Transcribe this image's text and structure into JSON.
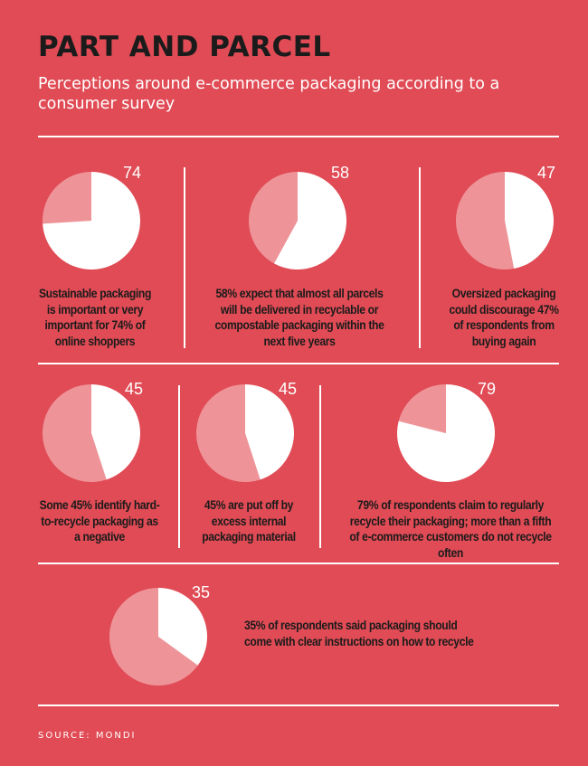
{
  "title": "PART AND PARCEL",
  "subtitle": "Perceptions around e-commerce packaging according to a consumer survey",
  "source": "SOURCE: MONDI",
  "colors": {
    "background": "#e04b55",
    "pie_value": "#ffffff",
    "pie_rest": "#ee9499",
    "dark_text": "#1b1b1b"
  },
  "chart_data": [
    {
      "type": "pie",
      "value": 74,
      "label": "74",
      "values": [
        74,
        26
      ],
      "caption": "Sustainable packaging is important or very important for 74% of online shoppers"
    },
    {
      "type": "pie",
      "value": 58,
      "label": "58",
      "values": [
        58,
        42
      ],
      "caption": "58% expect that almost all parcels will be delivered in recyclable or compostable packaging within the next five years"
    },
    {
      "type": "pie",
      "value": 47,
      "label": "47",
      "values": [
        47,
        53
      ],
      "caption": "Oversized packaging could discourage 47% of respondents from buying again"
    },
    {
      "type": "pie",
      "value": 45,
      "label": "45",
      "values": [
        45,
        55
      ],
      "caption": "Some 45% identify hard-to-recycle packaging as a negative"
    },
    {
      "type": "pie",
      "value": 45,
      "label": "45",
      "values": [
        45,
        55
      ],
      "caption": "45% are put off by excess internal packaging material"
    },
    {
      "type": "pie",
      "value": 79,
      "label": "79",
      "values": [
        79,
        21
      ],
      "caption": "79% of respondents claim to regularly recycle their packaging; more than a fifth of e-commerce customers do not recycle often"
    },
    {
      "type": "pie",
      "value": 35,
      "label": "35",
      "values": [
        35,
        65
      ],
      "caption": "35% of respondents said packaging should come with clear instructions on how to recycle"
    }
  ]
}
